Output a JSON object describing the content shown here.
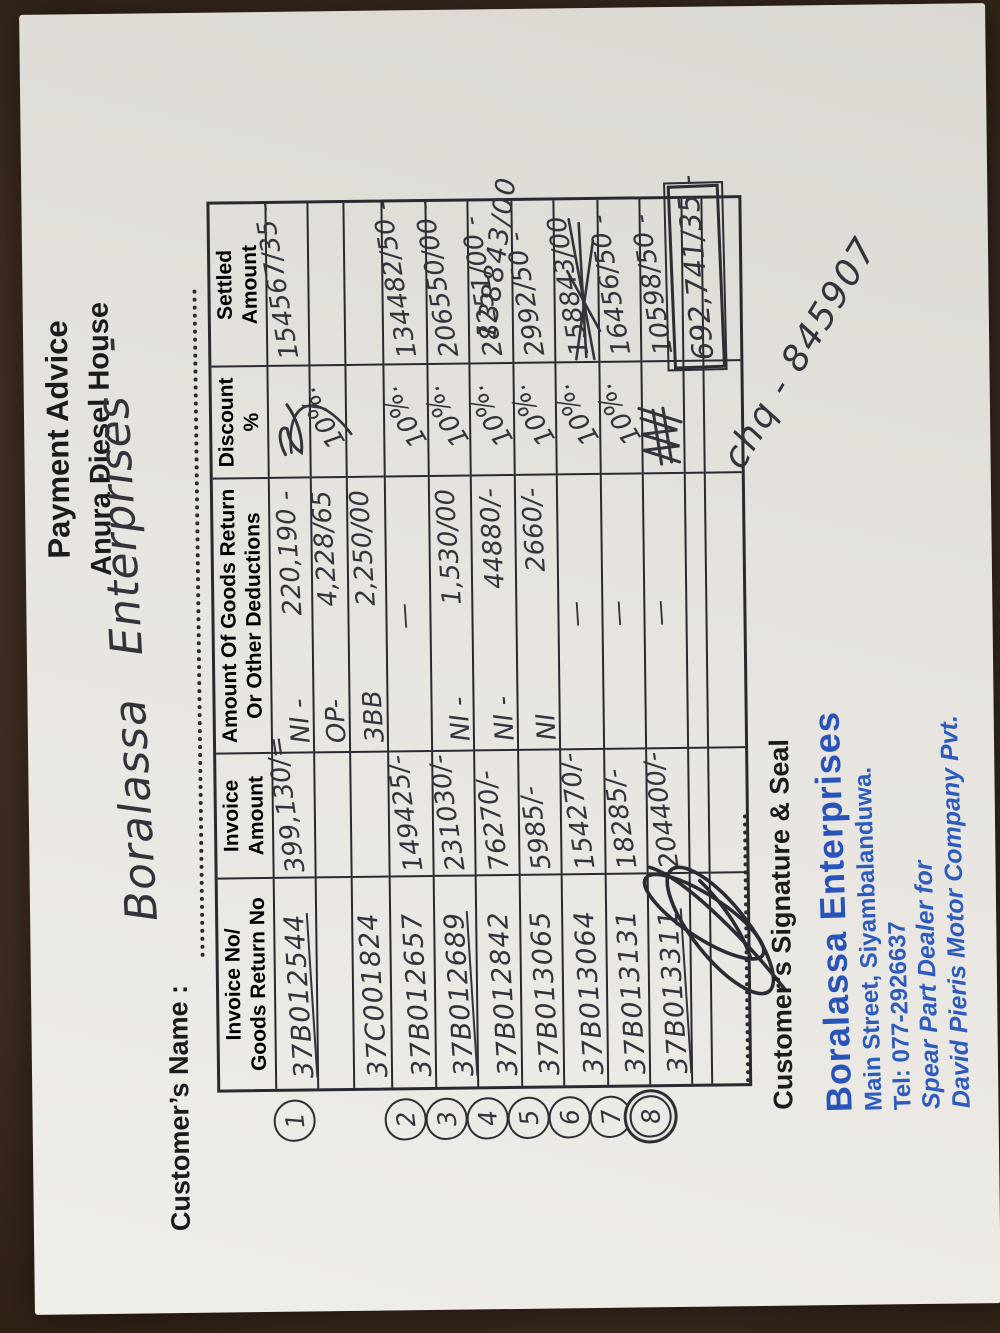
{
  "colors": {
    "wood": "#3b2a1f",
    "paper": "#e9e6e1",
    "ink": "#34333c",
    "stamp_blue": "#2d5cbe"
  },
  "doc": {
    "title_line1": "Payment Advice",
    "title_line2": "Anura Diesel House",
    "customer_label": "Customer’s Name :",
    "customer_name": "Boralassa Enterprises -",
    "cheque_note": "chq - 845907",
    "correction_note": "138843/00",
    "total": "692,741/35 -",
    "table": {
      "headers": [
        {
          "l1": "Invoice No/",
          "l2": "Goods Return No"
        },
        {
          "l1": "Invoice",
          "l2": "Amount"
        },
        {
          "l1": "Amount Of Goods Return",
          "l2": "Or Other Deductions"
        },
        {
          "l1": "Discount",
          "l2": "%"
        },
        {
          "l1": "Settled",
          "l2": "Amount"
        }
      ],
      "rows": [
        {
          "num": "1",
          "invoice_no": "37B012544",
          "underline": true,
          "invoice_amount": "399,130/=",
          "return_prefix": "NI -",
          "return_amount": "220,190 -",
          "discount": "~",
          "settled": "154567/35 -",
          "struck": false
        },
        {
          "num": "",
          "invoice_no": "",
          "underline": false,
          "invoice_amount": "",
          "return_prefix": "OP-",
          "return_amount": "4,228/65",
          "discount": "10%.",
          "settled": "",
          "struck": false
        },
        {
          "num": "",
          "invoice_no": "37C001824",
          "underline": false,
          "invoice_amount": "",
          "return_prefix": "3BB",
          "return_amount": "2,250/00",
          "discount": "",
          "settled": "",
          "struck": false
        },
        {
          "num": "2",
          "invoice_no": "37B012657",
          "underline": false,
          "invoice_amount": "149425/-",
          "return_prefix": "",
          "return_amount": "—",
          "discount": "10%.",
          "settled": "134482/50 -",
          "struck": false
        },
        {
          "num": "3",
          "invoice_no": "37B012689",
          "underline": true,
          "invoice_amount": "231030/-",
          "return_prefix": "NI -",
          "return_amount": "1,530/00",
          "discount": "10%.",
          "settled": "206550/00 -",
          "struck": false
        },
        {
          "num": "4",
          "invoice_no": "37B012842",
          "underline": false,
          "invoice_amount": "76270/-",
          "return_prefix": "NI -",
          "return_amount": "44880/-",
          "discount": "10%.",
          "settled": "28251/00 -",
          "struck": false
        },
        {
          "num": "5",
          "invoice_no": "37B013065",
          "underline": false,
          "invoice_amount": "5985/-",
          "return_prefix": "NI",
          "return_amount": "2660/-",
          "discount": "10%.",
          "settled": "2992/50 -",
          "struck": false
        },
        {
          "num": "6",
          "invoice_no": "37B013064",
          "underline": false,
          "invoice_amount": "154270/-",
          "return_prefix": "",
          "return_amount": "—",
          "discount": "10%.",
          "settled": "158843/00",
          "struck": true
        },
        {
          "num": "7",
          "invoice_no": "37B013131",
          "underline": false,
          "invoice_amount": "18285/-",
          "return_prefix": "",
          "return_amount": "—",
          "discount": "10%.",
          "settled": "16456/50 -",
          "struck": false
        },
        {
          "num": "8",
          "invoice_no": "37B013311",
          "underline": true,
          "invoice_amount": "204400/-",
          "return_prefix": "",
          "return_amount": "—",
          "discount": "##",
          "settled": "10598/50 -",
          "struck": false
        },
        {
          "num": "",
          "invoice_no": "",
          "underline": false,
          "invoice_amount": "",
          "return_prefix": "",
          "return_amount": "",
          "discount": "",
          "settled": "",
          "struck": false
        },
        {
          "num": "",
          "invoice_no": "",
          "underline": false,
          "invoice_amount": "",
          "return_prefix": "",
          "return_amount": "",
          "discount": "",
          "settled": "",
          "struck": false
        }
      ]
    },
    "signature_label": "Customer’s Signature & Seal",
    "stamp": {
      "name": "Boralassa Enterprises",
      "address": "Main Street, Siyambalanduwa.",
      "phone": "Tel: 077-2926637",
      "dealer_line1": "Spear Part Dealer for",
      "dealer_line2": "David Pieris Motor Company Pvt."
    }
  }
}
